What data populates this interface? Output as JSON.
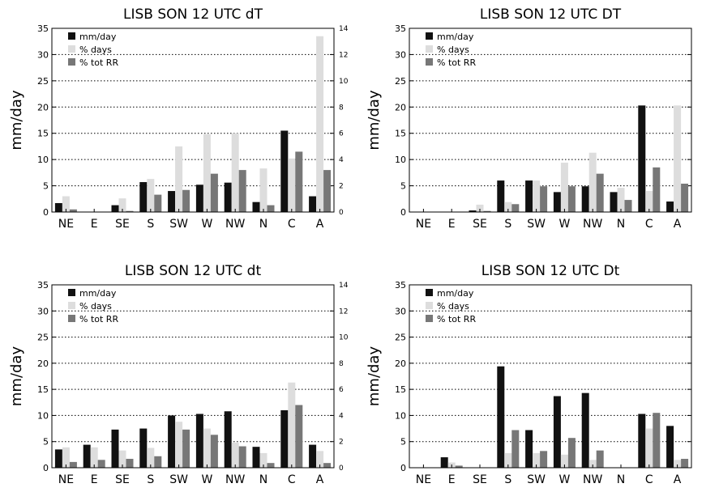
{
  "figure": {
    "series_colors": [
      "#111111",
      "#dddddd",
      "#777777"
    ]
  },
  "chart_data": [
    {
      "type": "bar",
      "title": "LISB SON 12 UTC dT",
      "ylabel": "mm/day",
      "categories": [
        "NE",
        "E",
        "SE",
        "S",
        "SW",
        "W",
        "NW",
        "N",
        "C",
        "A"
      ],
      "ylim": [
        0,
        35
      ],
      "y2lim": [
        0,
        14
      ],
      "yticks": [
        "0",
        "5",
        "10",
        "15",
        "20",
        "25",
        "30",
        "35"
      ],
      "y2ticks": [
        "0",
        "2",
        "4",
        "6",
        "8",
        "10",
        "12",
        "14"
      ],
      "legend_position": "top-left",
      "series": [
        {
          "name": "mm/day",
          "axis": "left",
          "values": [
            1.7,
            0,
            1.3,
            5.7,
            4,
            5.2,
            5.6,
            1.9,
            15.5,
            3
          ]
        },
        {
          "name": "% days",
          "axis": "left",
          "values": [
            3,
            0,
            2.6,
            6.3,
            12.5,
            14.8,
            15,
            8.3,
            10.2,
            33.5
          ]
        },
        {
          "name": "% tot RR",
          "axis": "left",
          "values": [
            0.5,
            0,
            0.2,
            3.3,
            4.2,
            7.3,
            8,
            1.3,
            11.5,
            8
          ]
        }
      ]
    },
    {
      "type": "bar",
      "title": "LISB SON 12 UTC DT",
      "ylabel": "mm/day",
      "categories": [
        "NE",
        "E",
        "SE",
        "S",
        "SW",
        "W",
        "NW",
        "N",
        "C",
        "A"
      ],
      "ylim": [
        0,
        35
      ],
      "y2lim": [
        0,
        14
      ],
      "yticks": [
        "0",
        "5",
        "10",
        "15",
        "20",
        "25",
        "30",
        "35"
      ],
      "y2ticks": [],
      "legend_position": "top-left",
      "series": [
        {
          "name": "mm/day",
          "axis": "left",
          "values": [
            0,
            0,
            0.3,
            6,
            6,
            3.8,
            4.9,
            3.8,
            20.3,
            2
          ]
        },
        {
          "name": "% days",
          "axis": "left",
          "values": [
            0,
            0,
            1.4,
            1.9,
            6,
            9.4,
            11.3,
            4.6,
            4,
            20.3
          ]
        },
        {
          "name": "% tot RR",
          "axis": "left",
          "values": [
            0,
            0,
            0.2,
            1.5,
            4.9,
            4.9,
            7.3,
            2.3,
            8.5,
            5.4
          ]
        }
      ]
    },
    {
      "type": "bar",
      "title": "LISB SON 12 UTC dt",
      "ylabel": "mm/day",
      "categories": [
        "NE",
        "E",
        "SE",
        "S",
        "SW",
        "W",
        "NW",
        "N",
        "C",
        "A"
      ],
      "ylim": [
        0,
        35
      ],
      "y2lim": [
        0,
        14
      ],
      "yticks": [
        "0",
        "5",
        "10",
        "15",
        "20",
        "25",
        "30",
        "35"
      ],
      "y2ticks": [
        "0",
        "2",
        "4",
        "6",
        "8",
        "10",
        "12",
        "14"
      ],
      "legend_position": "top-left",
      "series": [
        {
          "name": "mm/day",
          "axis": "left",
          "values": [
            3.5,
            4.4,
            7.3,
            7.5,
            10,
            10.3,
            10.8,
            4,
            11,
            4.4
          ]
        },
        {
          "name": "% days",
          "axis": "left",
          "values": [
            3.9,
            3.9,
            3.3,
            3.8,
            8.8,
            7.5,
            4.8,
            2.8,
            16.3,
            3.2
          ]
        },
        {
          "name": "% tot RR",
          "axis": "left",
          "values": [
            1.1,
            1.5,
            1.7,
            2.2,
            7.3,
            6.3,
            4.1,
            0.9,
            12,
            0.9
          ]
        }
      ]
    },
    {
      "type": "bar",
      "title": "LISB SON 12 UTC Dt",
      "ylabel": "mm/day",
      "categories": [
        "NE",
        "E",
        "SE",
        "S",
        "SW",
        "W",
        "NW",
        "N",
        "C",
        "A"
      ],
      "ylim": [
        0,
        35
      ],
      "y2lim": [
        0,
        14
      ],
      "yticks": [
        "0",
        "5",
        "10",
        "15",
        "20",
        "25",
        "30",
        "35"
      ],
      "y2ticks": [],
      "legend_position": "top-left",
      "series": [
        {
          "name": "mm/day",
          "axis": "left",
          "values": [
            0,
            2,
            0,
            19.4,
            7.2,
            13.7,
            14.3,
            0,
            10.3,
            8
          ]
        },
        {
          "name": "% days",
          "axis": "left",
          "values": [
            0,
            1,
            0,
            2.8,
            2.8,
            2.5,
            1.5,
            0,
            7.5,
            1.5
          ]
        },
        {
          "name": "% tot RR",
          "axis": "left",
          "values": [
            0,
            0.4,
            0,
            7.2,
            3.2,
            5.7,
            3.3,
            0,
            10.5,
            1.7
          ]
        }
      ]
    }
  ]
}
